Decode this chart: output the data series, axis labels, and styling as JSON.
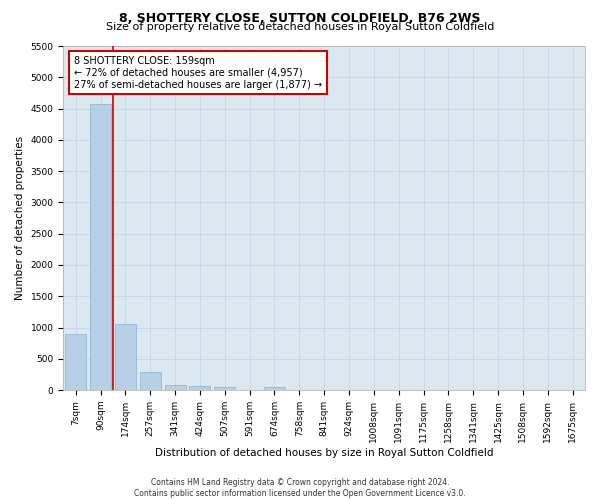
{
  "title": "8, SHOTTERY CLOSE, SUTTON COLDFIELD, B76 2WS",
  "subtitle": "Size of property relative to detached houses in Royal Sutton Coldfield",
  "xlabel": "Distribution of detached houses by size in Royal Sutton Coldfield",
  "ylabel": "Number of detached properties",
  "categories": [
    "7sqm",
    "90sqm",
    "174sqm",
    "257sqm",
    "341sqm",
    "424sqm",
    "507sqm",
    "591sqm",
    "674sqm",
    "758sqm",
    "841sqm",
    "924sqm",
    "1008sqm",
    "1091sqm",
    "1175sqm",
    "1258sqm",
    "1341sqm",
    "1425sqm",
    "1508sqm",
    "1592sqm",
    "1675sqm"
  ],
  "values": [
    900,
    4570,
    1060,
    295,
    75,
    65,
    50,
    0,
    55,
    0,
    0,
    0,
    0,
    0,
    0,
    0,
    0,
    0,
    0,
    0,
    0
  ],
  "bar_color": "#b8cfe8",
  "bar_edge_color": "#8ab0d0",
  "property_line_color": "#cc0000",
  "annotation_text": "8 SHOTTERY CLOSE: 159sqm\n← 72% of detached houses are smaller (4,957)\n27% of semi-detached houses are larger (1,877) →",
  "annotation_box_color": "#ffffff",
  "annotation_box_edge": "#cc0000",
  "ylim": [
    0,
    5500
  ],
  "yticks": [
    0,
    500,
    1000,
    1500,
    2000,
    2500,
    3000,
    3500,
    4000,
    4500,
    5000,
    5500
  ],
  "grid_color": "#c8d4e8",
  "bg_color": "#dce8f0",
  "footer_line1": "Contains HM Land Registry data © Crown copyright and database right 2024.",
  "footer_line2": "Contains public sector information licensed under the Open Government Licence v3.0.",
  "title_fontsize": 9,
  "subtitle_fontsize": 8,
  "xlabel_fontsize": 7.5,
  "ylabel_fontsize": 7.5,
  "tick_fontsize": 6.5,
  "annotation_fontsize": 7,
  "footer_fontsize": 5.5
}
